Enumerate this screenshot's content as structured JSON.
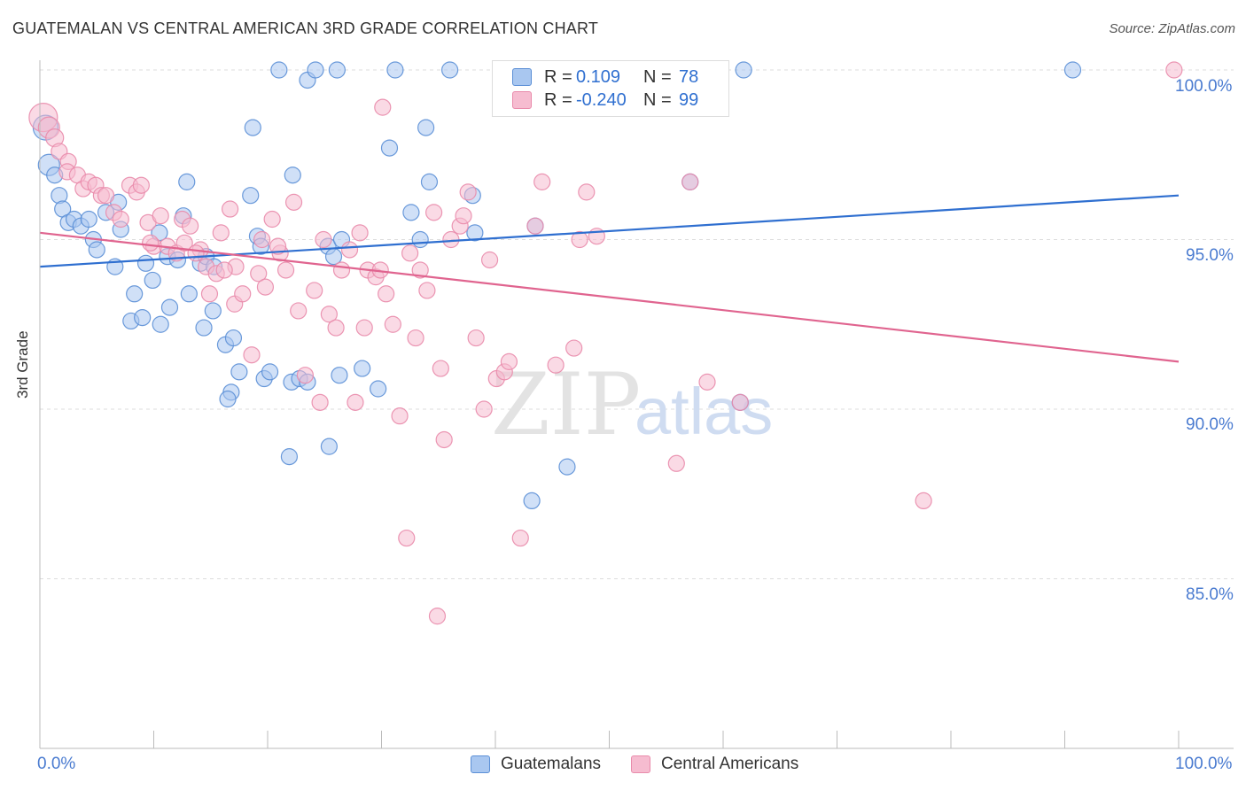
{
  "title": "GUATEMALAN VS CENTRAL AMERICAN 3RD GRADE CORRELATION CHART",
  "source": "Source: ZipAtlas.com",
  "watermark": {
    "zip": "ZIP",
    "atlas": "atlas"
  },
  "legend_top": {
    "rows": [
      {
        "r_label": "R =",
        "r_value": "0.109",
        "n_label": "N =",
        "n_value": "78"
      },
      {
        "r_label": "R =",
        "r_value": "-0.240",
        "n_label": "N =",
        "n_value": "99"
      }
    ]
  },
  "legend_bottom": {
    "items": [
      "Guatemalans",
      "Central Americans"
    ]
  },
  "colors": {
    "blue_fill": "#a9c7f0",
    "blue_stroke": "#5b8fd6",
    "blue_line": "#2f6fd0",
    "pink_fill": "#f6bcd0",
    "pink_stroke": "#e98bab",
    "pink_line": "#e0648f",
    "tick_text": "#4a7bd0",
    "grid": "#dddddd"
  },
  "chart_data": {
    "type": "scatter",
    "title": "GUATEMALAN VS CENTRAL AMERICAN 3RD GRADE CORRELATION CHART",
    "xlabel": "",
    "ylabel": "3rd Grade",
    "xlim": [
      0,
      100
    ],
    "ylim": [
      80.5,
      100.5
    ],
    "x_tick_labels": [
      "0.0%",
      "100.0%"
    ],
    "y_ticks": [
      85,
      90,
      95,
      100
    ],
    "y_tick_labels": [
      "85.0%",
      "90.0%",
      "95.0%",
      "100.0%"
    ],
    "grid": true,
    "legend_placement": "top-center",
    "series": [
      {
        "name": "Guatemalans",
        "r": 0.109,
        "n": 78,
        "trend": {
          "x": [
            0,
            100
          ],
          "y": [
            94.2,
            96.3
          ]
        },
        "points": [
          [
            0.5,
            98.3,
            14
          ],
          [
            0.8,
            97.2,
            12
          ],
          [
            1.3,
            96.9,
            9
          ],
          [
            1.7,
            96.3,
            9
          ],
          [
            2.0,
            95.9,
            9
          ],
          [
            2.5,
            95.5,
            9
          ],
          [
            3.0,
            95.6,
            9
          ],
          [
            3.6,
            95.4,
            9
          ],
          [
            4.3,
            95.6,
            9
          ],
          [
            4.7,
            95.0,
            9
          ],
          [
            5.8,
            95.8,
            9
          ],
          [
            5.0,
            94.7,
            9
          ],
          [
            6.9,
            96.1,
            9
          ],
          [
            7.1,
            95.3,
            9
          ],
          [
            6.6,
            94.2,
            9
          ],
          [
            8.3,
            93.4,
            9
          ],
          [
            9.3,
            94.3,
            9
          ],
          [
            9.9,
            93.8,
            9
          ],
          [
            8.0,
            92.6,
            9
          ],
          [
            9.0,
            92.7,
            9
          ],
          [
            10.5,
            95.2,
            9
          ],
          [
            11.2,
            94.5,
            9
          ],
          [
            12.1,
            94.4,
            9
          ],
          [
            12.6,
            95.7,
            9
          ],
          [
            10.6,
            92.5,
            9
          ],
          [
            11.4,
            93.0,
            9
          ],
          [
            13.1,
            93.4,
            9
          ],
          [
            12.9,
            96.7,
            9
          ],
          [
            14.1,
            94.3,
            9
          ],
          [
            14.6,
            94.5,
            9
          ],
          [
            15.3,
            94.2,
            9
          ],
          [
            14.4,
            92.4,
            9
          ],
          [
            15.2,
            92.9,
            9
          ],
          [
            16.3,
            91.9,
            9
          ],
          [
            17.0,
            92.1,
            9
          ],
          [
            16.8,
            90.5,
            9
          ],
          [
            17.5,
            91.1,
            9
          ],
          [
            16.5,
            90.3,
            9
          ],
          [
            18.5,
            96.3,
            9
          ],
          [
            19.1,
            95.1,
            9
          ],
          [
            19.4,
            94.8,
            9
          ],
          [
            18.7,
            98.3,
            9
          ],
          [
            19.7,
            90.9,
            9
          ],
          [
            20.2,
            91.1,
            9
          ],
          [
            21.0,
            100.0,
            9
          ],
          [
            22.1,
            90.8,
            9
          ],
          [
            22.8,
            90.9,
            9
          ],
          [
            23.5,
            90.8,
            9
          ],
          [
            22.2,
            96.9,
            9
          ],
          [
            21.9,
            88.6,
            9
          ],
          [
            23.5,
            99.7,
            9
          ],
          [
            24.2,
            100.0,
            9
          ],
          [
            25.3,
            94.8,
            9
          ],
          [
            25.8,
            94.5,
            9
          ],
          [
            26.5,
            95.0,
            9
          ],
          [
            25.4,
            88.9,
            9
          ],
          [
            26.1,
            100.0,
            9
          ],
          [
            26.3,
            91.0,
            9
          ],
          [
            28.3,
            91.2,
            9
          ],
          [
            29.7,
            90.6,
            9
          ],
          [
            30.7,
            97.7,
            9
          ],
          [
            31.2,
            100.0,
            9
          ],
          [
            32.6,
            95.8,
            9
          ],
          [
            33.4,
            95.0,
            9
          ],
          [
            33.9,
            98.3,
            9
          ],
          [
            34.2,
            96.7,
            9
          ],
          [
            36.0,
            100.0,
            9
          ],
          [
            38.0,
            96.3,
            9
          ],
          [
            38.2,
            95.2,
            9
          ],
          [
            40.6,
            100.0,
            9
          ],
          [
            43.5,
            95.4,
            9
          ],
          [
            46.3,
            88.3,
            9
          ],
          [
            43.2,
            87.3,
            9
          ],
          [
            57.1,
            96.7,
            9
          ],
          [
            59.4,
            100.0,
            9
          ],
          [
            61.5,
            90.2,
            9
          ],
          [
            61.8,
            100.0,
            9
          ],
          [
            90.7,
            100.0,
            9
          ]
        ]
      },
      {
        "name": "Central Americans",
        "r": -0.24,
        "n": 99,
        "trend": {
          "x": [
            0,
            100
          ],
          "y": [
            95.2,
            91.4
          ]
        },
        "points": [
          [
            0.3,
            98.6,
            16
          ],
          [
            0.8,
            98.3,
            12
          ],
          [
            1.3,
            98.0,
            10
          ],
          [
            1.7,
            97.6,
            9
          ],
          [
            2.5,
            97.3,
            9
          ],
          [
            2.4,
            97.0,
            9
          ],
          [
            3.3,
            96.9,
            9
          ],
          [
            3.8,
            96.5,
            9
          ],
          [
            4.3,
            96.7,
            9
          ],
          [
            4.9,
            96.6,
            9
          ],
          [
            5.4,
            96.3,
            9
          ],
          [
            5.8,
            96.3,
            9
          ],
          [
            6.5,
            95.8,
            9
          ],
          [
            7.1,
            95.6,
            9
          ],
          [
            7.9,
            96.6,
            9
          ],
          [
            8.5,
            96.4,
            9
          ],
          [
            8.9,
            96.6,
            9
          ],
          [
            9.5,
            95.5,
            9
          ],
          [
            10.0,
            94.8,
            9
          ],
          [
            10.6,
            95.7,
            9
          ],
          [
            11.2,
            94.8,
            9
          ],
          [
            12.0,
            94.6,
            9
          ],
          [
            12.5,
            95.6,
            9
          ],
          [
            13.2,
            95.4,
            9
          ],
          [
            12.7,
            94.9,
            9
          ],
          [
            14.1,
            94.7,
            9
          ],
          [
            14.6,
            94.2,
            9
          ],
          [
            14.9,
            93.4,
            9
          ],
          [
            15.5,
            94.0,
            9
          ],
          [
            15.9,
            95.2,
            9
          ],
          [
            16.7,
            95.9,
            9
          ],
          [
            17.2,
            94.2,
            9
          ],
          [
            17.1,
            93.1,
            9
          ],
          [
            17.8,
            93.4,
            9
          ],
          [
            18.6,
            91.6,
            9
          ],
          [
            19.2,
            94.0,
            9
          ],
          [
            19.5,
            95.0,
            9
          ],
          [
            19.8,
            93.6,
            9
          ],
          [
            20.4,
            95.6,
            9
          ],
          [
            21.1,
            94.6,
            9
          ],
          [
            21.6,
            94.1,
            9
          ],
          [
            22.3,
            96.1,
            9
          ],
          [
            22.7,
            92.9,
            9
          ],
          [
            23.3,
            91.0,
            9
          ],
          [
            24.1,
            93.5,
            9
          ],
          [
            24.6,
            90.2,
            9
          ],
          [
            24.9,
            95.0,
            9
          ],
          [
            25.4,
            92.8,
            9
          ],
          [
            26.0,
            92.4,
            9
          ],
          [
            26.5,
            94.1,
            9
          ],
          [
            27.2,
            94.7,
            9
          ],
          [
            27.7,
            90.2,
            9
          ],
          [
            28.1,
            95.2,
            9
          ],
          [
            28.5,
            92.4,
            9
          ],
          [
            28.8,
            94.1,
            9
          ],
          [
            29.5,
            93.9,
            9
          ],
          [
            29.9,
            94.1,
            9
          ],
          [
            30.4,
            93.4,
            9
          ],
          [
            31.0,
            92.5,
            9
          ],
          [
            31.6,
            89.8,
            9
          ],
          [
            32.2,
            86.2,
            9
          ],
          [
            32.5,
            94.6,
            9
          ],
          [
            33.0,
            92.1,
            9
          ],
          [
            33.4,
            94.1,
            9
          ],
          [
            34.0,
            93.5,
            9
          ],
          [
            34.6,
            95.8,
            9
          ],
          [
            35.2,
            91.2,
            9
          ],
          [
            35.5,
            89.1,
            9
          ],
          [
            36.1,
            95.0,
            9
          ],
          [
            36.9,
            95.4,
            9
          ],
          [
            37.6,
            96.4,
            9
          ],
          [
            38.3,
            92.1,
            9
          ],
          [
            39.0,
            90.0,
            9
          ],
          [
            39.5,
            94.4,
            9
          ],
          [
            40.1,
            90.9,
            9
          ],
          [
            40.8,
            91.1,
            9
          ],
          [
            41.2,
            91.4,
            9
          ],
          [
            42.2,
            86.2,
            9
          ],
          [
            43.5,
            95.4,
            9
          ],
          [
            44.1,
            96.7,
            9
          ],
          [
            45.3,
            91.3,
            9
          ],
          [
            46.9,
            91.8,
            9
          ],
          [
            47.4,
            95.0,
            9
          ],
          [
            48.9,
            95.1,
            9
          ],
          [
            48.0,
            96.4,
            9
          ],
          [
            51.0,
            100.0,
            9
          ],
          [
            55.9,
            88.4,
            9
          ],
          [
            57.1,
            96.7,
            9
          ],
          [
            58.6,
            90.8,
            9
          ],
          [
            61.5,
            90.2,
            9
          ],
          [
            77.6,
            87.3,
            9
          ],
          [
            99.6,
            100.0,
            9
          ],
          [
            34.9,
            83.9,
            9
          ],
          [
            37.2,
            95.7,
            9
          ],
          [
            30.1,
            98.9,
            9
          ],
          [
            9.7,
            94.9,
            9
          ],
          [
            13.7,
            94.6,
            9
          ],
          [
            16.2,
            94.1,
            9
          ],
          [
            20.9,
            94.8,
            9
          ]
        ]
      }
    ]
  }
}
